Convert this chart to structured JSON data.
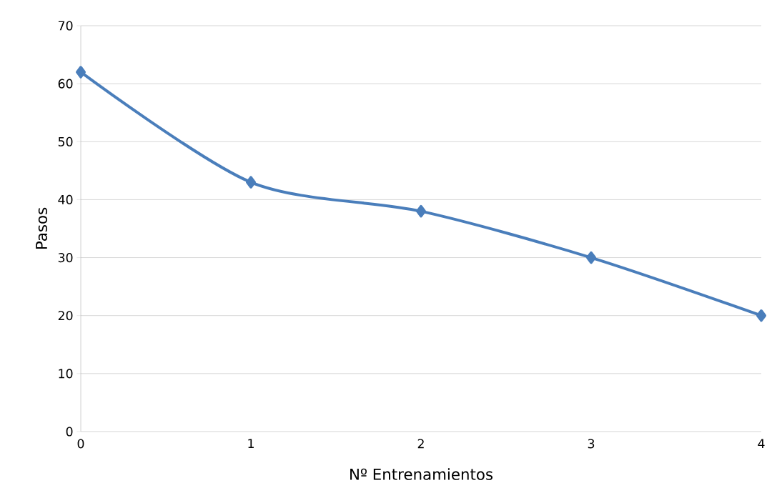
{
  "chart_data": {
    "type": "line",
    "xlabel": "Nº Entrenamientos",
    "ylabel": "Pasos",
    "x": [
      0,
      1,
      2,
      3,
      4
    ],
    "series": [
      {
        "color": "#4a7ebb",
        "values": [
          62,
          43,
          38,
          30,
          20
        ]
      }
    ],
    "xlim": [
      0,
      4
    ],
    "xticks": [
      0,
      1,
      2,
      3,
      4
    ],
    "ylim": [
      0,
      70
    ],
    "yticks": [
      0,
      10,
      20,
      30,
      40,
      50,
      60,
      70
    ],
    "grid": "y",
    "marker": "diamond",
    "line_style": "solid"
  }
}
